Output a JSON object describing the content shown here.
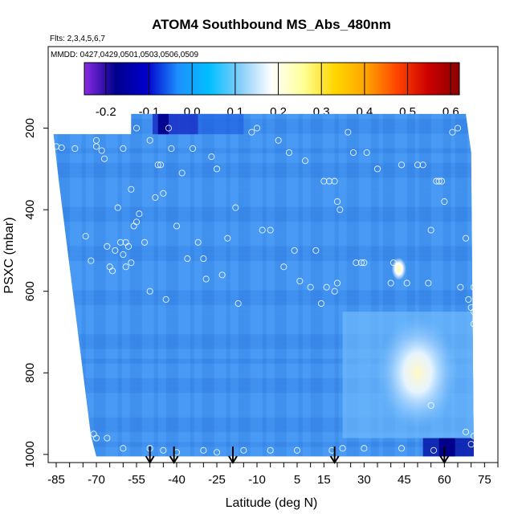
{
  "chart_data": {
    "type": "heatmap",
    "title": "ATOM4 Southbound MS_Abs_480nm",
    "subtitle": "Flts: 2,3,4,5,6,7",
    "annotation": "MMDD: 0427,0429,0501,0503,0506,0509",
    "xlabel": "Latitude (deg N)",
    "ylabel": "PSXC (mbar)",
    "xlim": [
      -88,
      80
    ],
    "ylim": [
      1020,
      0
    ],
    "x_ticks": [
      -85,
      -70,
      -55,
      -40,
      -25,
      -10,
      5,
      15,
      30,
      45,
      60,
      75
    ],
    "x_tick_labels": [
      "-85",
      "-70",
      "-55",
      "-40",
      "-25",
      "-10",
      "5",
      "15",
      "30",
      "45",
      "60",
      "75"
    ],
    "y_ticks": [
      200,
      400,
      600,
      800,
      1000
    ],
    "y_tick_labels": [
      "200",
      "400",
      "600",
      "800",
      "1000"
    ],
    "colorbar": {
      "min": -0.25,
      "max": 0.62,
      "ticks": [
        -0.2,
        -0.1,
        0.0,
        0.1,
        0.2,
        0.3,
        0.4,
        0.5,
        0.6
      ],
      "tick_labels": [
        "-0.2",
        "-0.1",
        "0.0",
        "0.1",
        "0.2",
        "0.3",
        "0.4",
        "0.5",
        "0.6"
      ],
      "colors": [
        "#8a2be2",
        "#00008b",
        "#0000cd",
        "#1e90ff",
        "#00bfff",
        "#87cefa",
        "#ffffff",
        "#ffff99",
        "#ffd700",
        "#ffa500",
        "#ff4500",
        "#cc0000",
        "#8b0000"
      ]
    },
    "data_extent": {
      "x_left_top": -86,
      "x_left_bottom": -72,
      "x_right": 71,
      "p_top_left": 215,
      "p_top_main": 165,
      "p_bottom": 1005
    },
    "background_value": 0.06,
    "features": [
      {
        "lat": -45,
        "p": 170,
        "value": -0.12,
        "note": "dark blue band near top"
      },
      {
        "lat": 44,
        "p": 545,
        "value": 0.28,
        "note": "bright spot"
      },
      {
        "lat": 50,
        "p": 800,
        "value": 0.25,
        "note": "pale region"
      },
      {
        "lat": 60,
        "p": 980,
        "value": -0.15,
        "note": "dark blue near surface"
      }
    ],
    "sample_points": [
      [
        -85,
        245
      ],
      [
        -83,
        248
      ],
      [
        -78,
        250
      ],
      [
        -74,
        465
      ],
      [
        -72,
        525
      ],
      [
        -70,
        230
      ],
      [
        -70,
        245
      ],
      [
        -68,
        255
      ],
      [
        -67,
        275
      ],
      [
        -66,
        490
      ],
      [
        -65,
        540
      ],
      [
        -64,
        550
      ],
      [
        -63,
        500
      ],
      [
        -62,
        395
      ],
      [
        -61,
        480
      ],
      [
        -60,
        250
      ],
      [
        -60,
        510
      ],
      [
        -59,
        480
      ],
      [
        -59,
        540
      ],
      [
        -58,
        490
      ],
      [
        -57,
        350
      ],
      [
        -57,
        530
      ],
      [
        -56,
        440
      ],
      [
        -55,
        430
      ],
      [
        -55,
        200
      ],
      [
        -54,
        410
      ],
      [
        -52,
        480
      ],
      [
        -50,
        230
      ],
      [
        -50,
        600
      ],
      [
        -48,
        370
      ],
      [
        -47,
        290
      ],
      [
        -46,
        290
      ],
      [
        -45,
        360
      ],
      [
        -44,
        620
      ],
      [
        -43,
        200
      ],
      [
        -42,
        250
      ],
      [
        -40,
        440
      ],
      [
        -38,
        310
      ],
      [
        -36,
        520
      ],
      [
        -34,
        250
      ],
      [
        -32,
        480
      ],
      [
        -30,
        520
      ],
      [
        -29,
        570
      ],
      [
        -27,
        270
      ],
      [
        -25,
        300
      ],
      [
        -23,
        560
      ],
      [
        -21,
        470
      ],
      [
        -18,
        395
      ],
      [
        -17,
        630
      ],
      [
        -12,
        210
      ],
      [
        -10,
        200
      ],
      [
        -8,
        450
      ],
      [
        -5,
        450
      ],
      [
        -2,
        230
      ],
      [
        0,
        540
      ],
      [
        2,
        260
      ],
      [
        4,
        500
      ],
      [
        6,
        575
      ],
      [
        8,
        280
      ],
      [
        10,
        590
      ],
      [
        12,
        500
      ],
      [
        14,
        630
      ],
      [
        15,
        330
      ],
      [
        16,
        590
      ],
      [
        17,
        330
      ],
      [
        19,
        330
      ],
      [
        19,
        600
      ],
      [
        20,
        380
      ],
      [
        20,
        580
      ],
      [
        21,
        400
      ],
      [
        24,
        210
      ],
      [
        26,
        260
      ],
      [
        27,
        530
      ],
      [
        29,
        530
      ],
      [
        30,
        530
      ],
      [
        31,
        260
      ],
      [
        35,
        300
      ],
      [
        40,
        580
      ],
      [
        41,
        530
      ],
      [
        43,
        550
      ],
      [
        44,
        290
      ],
      [
        46,
        580
      ],
      [
        50,
        290
      ],
      [
        52,
        290
      ],
      [
        54,
        580
      ],
      [
        55,
        450
      ],
      [
        57,
        330
      ],
      [
        58,
        330
      ],
      [
        59,
        330
      ],
      [
        60,
        380
      ],
      [
        63,
        210
      ],
      [
        65,
        200
      ],
      [
        66,
        590
      ],
      [
        68,
        470
      ],
      [
        69,
        620
      ],
      [
        70,
        640
      ],
      [
        71,
        680
      ],
      [
        71,
        650
      ],
      [
        72,
        570
      ],
      [
        71,
        590
      ],
      [
        -71,
        950
      ],
      [
        -70,
        960
      ],
      [
        -66,
        960
      ],
      [
        -60,
        985
      ],
      [
        -50,
        985
      ],
      [
        -45,
        990
      ],
      [
        -40,
        995
      ],
      [
        -30,
        990
      ],
      [
        -25,
        995
      ],
      [
        -15,
        990
      ],
      [
        -5,
        990
      ],
      [
        5,
        990
      ],
      [
        18,
        990
      ],
      [
        22,
        985
      ],
      [
        30,
        985
      ],
      [
        44,
        985
      ],
      [
        56,
        990
      ],
      [
        70,
        975
      ],
      [
        71,
        955
      ],
      [
        68,
        945
      ],
      [
        55,
        880
      ]
    ],
    "arrows_at_lat": [
      -50,
      -41,
      -19,
      19,
      60
    ]
  }
}
